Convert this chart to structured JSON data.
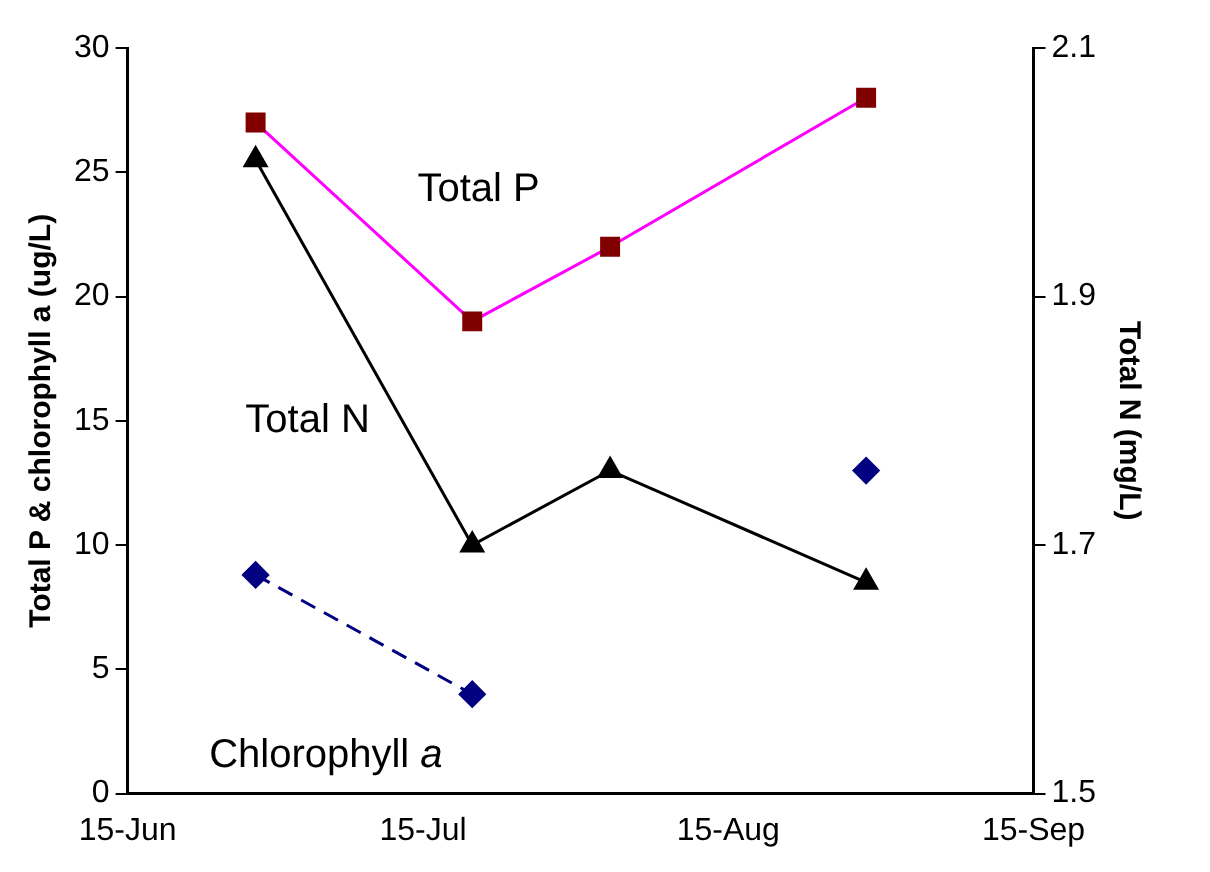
{
  "chart_data": {
    "type": "line",
    "ylabel": "Total P & chlorophyll $_{}$a (ug/L)",
    "y2label": "Total N (mg/L)",
    "xlim": [
      "--06-15",
      "--09-15"
    ],
    "xticks": [
      {
        "value": "--06-15",
        "label": "15-Jun"
      },
      {
        "value": "--07-15",
        "label": "15-Jul"
      },
      {
        "value": "--08-15",
        "label": "15-Aug"
      },
      {
        "value": "--09-15",
        "label": "15-Sep"
      }
    ],
    "ylim": [
      0,
      30
    ],
    "yticks": [
      0,
      5,
      10,
      15,
      20,
      25,
      30
    ],
    "y2lim": [
      1.5,
      2.1
    ],
    "y2ticks": [
      {
        "value": 1.5,
        "label": "1.5"
      },
      {
        "value": 1.7,
        "label": "1.7"
      },
      {
        "value": 1.9,
        "label": "1.9"
      },
      {
        "value": 2.1,
        "label": "2.1"
      }
    ],
    "grid": false,
    "legend": false,
    "series": [
      {
        "name": "Total P",
        "color": "#ff00ff",
        "colors": [
          "#800000",
          "#800000",
          "#800000",
          "#800000"
        ],
        "marker": "square",
        "line_style": "solid",
        "x": [
          "--06-28",
          "--07-20",
          "--08-03",
          "--08-29"
        ],
        "values": [
          27,
          19,
          22,
          28
        ]
      },
      {
        "name": "Total N",
        "color": "#000000",
        "marker": "triangle",
        "line_style": "solid",
        "axis": "y2",
        "x": [
          "--06-28",
          "--07-20",
          "--08-03",
          "--08-29"
        ],
        "values": [
          2.01,
          1.7,
          1.76,
          1.67
        ]
      },
      {
        "name": "Chlorophyll $_{}$a",
        "color": "#000080",
        "marker": "diamond",
        "line_style": "dashed",
        "x": [
          "--06-28",
          "--07-20",
          "--08-03",
          "--08-29"
        ],
        "values": [
          8.8,
          4,
          null,
          13
        ]
      }
    ]
  }
}
